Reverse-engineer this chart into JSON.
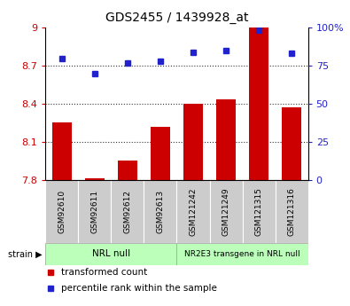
{
  "title": "GDS2455 / 1439928_at",
  "samples": [
    "GSM92610",
    "GSM92611",
    "GSM92612",
    "GSM92613",
    "GSM121242",
    "GSM121249",
    "GSM121315",
    "GSM121316"
  ],
  "bar_values": [
    8.255,
    7.82,
    7.955,
    8.22,
    8.4,
    8.435,
    9.0,
    8.375
  ],
  "scatter_values": [
    80,
    70,
    77,
    78,
    84,
    85,
    98,
    83
  ],
  "ylim_left": [
    7.8,
    9.0
  ],
  "ylim_right": [
    0,
    100
  ],
  "yticks_left": [
    7.8,
    8.1,
    8.4,
    8.7,
    9.0
  ],
  "yticks_right": [
    0,
    25,
    50,
    75,
    100
  ],
  "ytick_labels_left": [
    "7.8",
    "8.1",
    "8.4",
    "8.7",
    "9"
  ],
  "ytick_labels_right": [
    "0",
    "25",
    "50",
    "75",
    "100%"
  ],
  "bar_color": "#cc0000",
  "scatter_color": "#2222cc",
  "bar_bottom": 7.8,
  "group1_label": "NRL null",
  "group2_label": "NR2E3 transgene in NRL null",
  "group_bg_color": "#bbffbb",
  "sample_bg_color": "#cccccc",
  "legend_bar_label": "transformed count",
  "legend_scatter_label": "percentile rank within the sample",
  "strain_label": "strain",
  "left_tick_color": "#cc0000",
  "right_tick_color": "#2222cc",
  "dotted_line_color": "#333333",
  "hline_values": [
    8.1,
    8.4,
    8.7
  ],
  "figsize": [
    3.95,
    3.45
  ],
  "dpi": 100
}
